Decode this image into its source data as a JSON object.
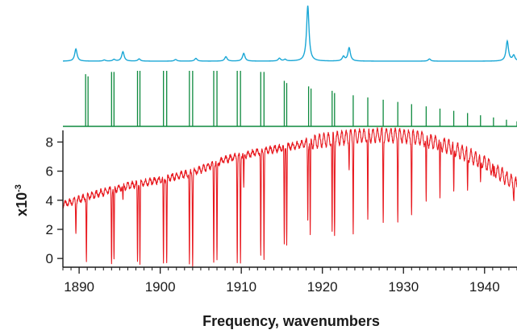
{
  "chart_data": {
    "type": "line",
    "xlabel": "Frequency, wavenumbers",
    "ylabel": "x10",
    "ylabel_exponent": "-3",
    "xlim": [
      1888,
      1944
    ],
    "ylim": [
      -0.6,
      8.8
    ],
    "x_ticks": [
      1890,
      1900,
      1910,
      1920,
      1930,
      1940
    ],
    "y_ticks": [
      0,
      2,
      4,
      6,
      8
    ],
    "colors": {
      "simulated_spectrum": "#1aa7d6",
      "stick_lines": "#0e8a3e",
      "measured_spectrum": "#e8191f",
      "axes": "#1a1a1a"
    },
    "panels": [
      {
        "name": "simulated-spectrum",
        "type": "line",
        "baseline": 0,
        "peaks": [
          {
            "x": 1889.6,
            "h": 0.22
          },
          {
            "x": 1893.1,
            "h": 0.02
          },
          {
            "x": 1894.3,
            "h": 0.03
          },
          {
            "x": 1895.4,
            "h": 0.17
          },
          {
            "x": 1897.4,
            "h": 0.04
          },
          {
            "x": 1901.9,
            "h": 0.03
          },
          {
            "x": 1904.4,
            "h": 0.05
          },
          {
            "x": 1908.1,
            "h": 0.08
          },
          {
            "x": 1910.3,
            "h": 0.14
          },
          {
            "x": 1914.7,
            "h": 0.05
          },
          {
            "x": 1915.4,
            "h": 0.03
          },
          {
            "x": 1918.2,
            "h": 1.0
          },
          {
            "x": 1922.6,
            "h": 0.08
          },
          {
            "x": 1923.3,
            "h": 0.24
          },
          {
            "x": 1933.2,
            "h": 0.04
          },
          {
            "x": 1942.8,
            "h": 0.36
          },
          {
            "x": 1943.6,
            "h": 0.1
          }
        ]
      },
      {
        "name": "stick-lines",
        "type": "stick",
        "sticks": [
          {
            "x": 1890.8,
            "h": 0.94
          },
          {
            "x": 1891.1,
            "h": 0.9
          },
          {
            "x": 1894.0,
            "h": 0.98
          },
          {
            "x": 1894.3,
            "h": 0.98
          },
          {
            "x": 1897.2,
            "h": 1.0
          },
          {
            "x": 1897.5,
            "h": 1.0
          },
          {
            "x": 1900.4,
            "h": 1.0
          },
          {
            "x": 1900.8,
            "h": 1.0
          },
          {
            "x": 1903.6,
            "h": 1.0
          },
          {
            "x": 1904.0,
            "h": 1.0
          },
          {
            "x": 1906.6,
            "h": 1.0
          },
          {
            "x": 1907.0,
            "h": 1.0
          },
          {
            "x": 1909.5,
            "h": 1.0
          },
          {
            "x": 1909.9,
            "h": 1.0
          },
          {
            "x": 1912.4,
            "h": 0.98
          },
          {
            "x": 1912.8,
            "h": 0.98
          },
          {
            "x": 1915.3,
            "h": 0.82
          },
          {
            "x": 1915.6,
            "h": 0.78
          },
          {
            "x": 1918.3,
            "h": 0.72
          },
          {
            "x": 1918.6,
            "h": 0.68
          },
          {
            "x": 1921.2,
            "h": 0.64
          },
          {
            "x": 1921.5,
            "h": 0.6
          },
          {
            "x": 1923.8,
            "h": 0.56
          },
          {
            "x": 1925.6,
            "h": 0.52
          },
          {
            "x": 1927.5,
            "h": 0.48
          },
          {
            "x": 1929.3,
            "h": 0.44
          },
          {
            "x": 1931.0,
            "h": 0.4
          },
          {
            "x": 1932.8,
            "h": 0.36
          },
          {
            "x": 1934.5,
            "h": 0.32
          },
          {
            "x": 1936.2,
            "h": 0.28
          },
          {
            "x": 1937.9,
            "h": 0.24
          },
          {
            "x": 1939.5,
            "h": 0.2
          },
          {
            "x": 1941.1,
            "h": 0.16
          },
          {
            "x": 1942.7,
            "h": 0.12
          },
          {
            "x": 1944.0,
            "h": 0.09
          }
        ]
      },
      {
        "name": "measured-spectrum",
        "type": "line",
        "envelope": [
          {
            "x": 1888.0,
            "y": 3.7
          },
          {
            "x": 1892.0,
            "y": 4.4
          },
          {
            "x": 1896.0,
            "y": 5.0
          },
          {
            "x": 1900.0,
            "y": 5.4
          },
          {
            "x": 1904.0,
            "y": 5.9
          },
          {
            "x": 1908.0,
            "y": 6.8
          },
          {
            "x": 1912.0,
            "y": 7.3
          },
          {
            "x": 1916.0,
            "y": 7.7
          },
          {
            "x": 1920.0,
            "y": 8.1
          },
          {
            "x": 1924.0,
            "y": 8.4
          },
          {
            "x": 1928.0,
            "y": 8.5
          },
          {
            "x": 1932.0,
            "y": 8.3
          },
          {
            "x": 1936.0,
            "y": 7.6
          },
          {
            "x": 1940.0,
            "y": 6.6
          },
          {
            "x": 1944.0,
            "y": 5.0
          }
        ],
        "dips": [
          {
            "x": 1889.6,
            "y": 1.8
          },
          {
            "x": 1890.9,
            "y": -0.3
          },
          {
            "x": 1894.0,
            "y": -0.3
          },
          {
            "x": 1894.3,
            "y": -0.3
          },
          {
            "x": 1895.4,
            "y": 3.8
          },
          {
            "x": 1897.2,
            "y": -0.3
          },
          {
            "x": 1897.5,
            "y": -0.3
          },
          {
            "x": 1900.4,
            "y": -0.4
          },
          {
            "x": 1900.8,
            "y": -0.4
          },
          {
            "x": 1903.6,
            "y": -0.4
          },
          {
            "x": 1904.0,
            "y": -0.4
          },
          {
            "x": 1906.6,
            "y": -0.3
          },
          {
            "x": 1907.0,
            "y": -0.3
          },
          {
            "x": 1909.5,
            "y": -0.2
          },
          {
            "x": 1909.9,
            "y": -0.2
          },
          {
            "x": 1910.3,
            "y": 4.8
          },
          {
            "x": 1912.4,
            "y": 0.1
          },
          {
            "x": 1912.8,
            "y": 0.1
          },
          {
            "x": 1915.3,
            "y": 0.9
          },
          {
            "x": 1915.6,
            "y": 1.1
          },
          {
            "x": 1918.2,
            "y": 3.0
          },
          {
            "x": 1918.5,
            "y": 1.3
          },
          {
            "x": 1921.2,
            "y": 1.7
          },
          {
            "x": 1921.5,
            "y": 1.9
          },
          {
            "x": 1923.3,
            "y": 6.4
          },
          {
            "x": 1923.8,
            "y": 2.2
          },
          {
            "x": 1925.6,
            "y": 2.4
          },
          {
            "x": 1927.5,
            "y": 2.6
          },
          {
            "x": 1929.3,
            "y": 2.9
          },
          {
            "x": 1931.0,
            "y": 3.2
          },
          {
            "x": 1932.8,
            "y": 3.5
          },
          {
            "x": 1934.5,
            "y": 3.8
          },
          {
            "x": 1936.2,
            "y": 4.2
          },
          {
            "x": 1937.9,
            "y": 4.6
          },
          {
            "x": 1939.5,
            "y": 4.9
          },
          {
            "x": 1941.1,
            "y": 5.2
          },
          {
            "x": 1942.7,
            "y": 5.4
          },
          {
            "x": 1943.6,
            "y": 4.3
          }
        ],
        "ripple": {
          "period": 0.55,
          "amplitude": 0.32,
          "amplitude_growth_above": 1918
        }
      }
    ]
  }
}
